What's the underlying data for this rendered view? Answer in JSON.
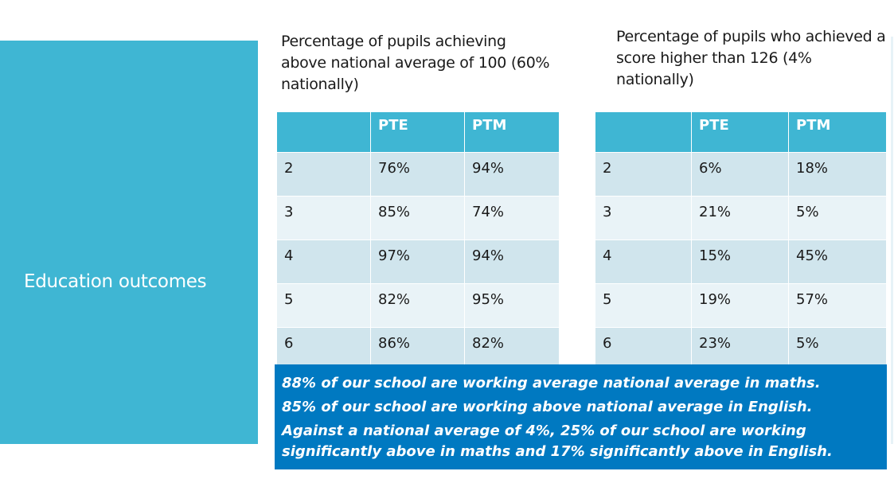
{
  "side": {
    "title": "Education outcomes"
  },
  "left": {
    "caption": "Percentage of pupils achieving above national average of 100 (60% nationally)",
    "headers": [
      "",
      "PTE",
      "PTM"
    ],
    "rows": [
      [
        "2",
        "76%",
        "94%"
      ],
      [
        "3",
        "85%",
        "74%"
      ],
      [
        "4",
        "97%",
        "94%"
      ],
      [
        "5",
        "82%",
        "95%"
      ],
      [
        "6",
        "86%",
        "82%"
      ]
    ]
  },
  "right": {
    "caption": "Percentage of pupils who achieved a score higher than 126 (4% nationally)",
    "headers": [
      "",
      "PTE",
      "PTM"
    ],
    "rows": [
      [
        "2",
        "6%",
        "18%"
      ],
      [
        "3",
        "21%",
        "5%"
      ],
      [
        "4",
        "15%",
        "45%"
      ],
      [
        "5",
        "19%",
        "57%"
      ],
      [
        "6",
        "23%",
        "5%"
      ]
    ]
  },
  "summary": {
    "line1": "88% of our school are working average national average in maths.",
    "line2": "85% of our school are working above national average in English.",
    "line3": "Against a national average of 4%, 25% of our school are working significantly above in maths and 17% significantly above in English."
  },
  "colors": {
    "accent": "#3fb6d3",
    "summary_bg": "#0079c1",
    "row_dark": "#d0e5ed",
    "row_light": "#e9f3f7"
  }
}
